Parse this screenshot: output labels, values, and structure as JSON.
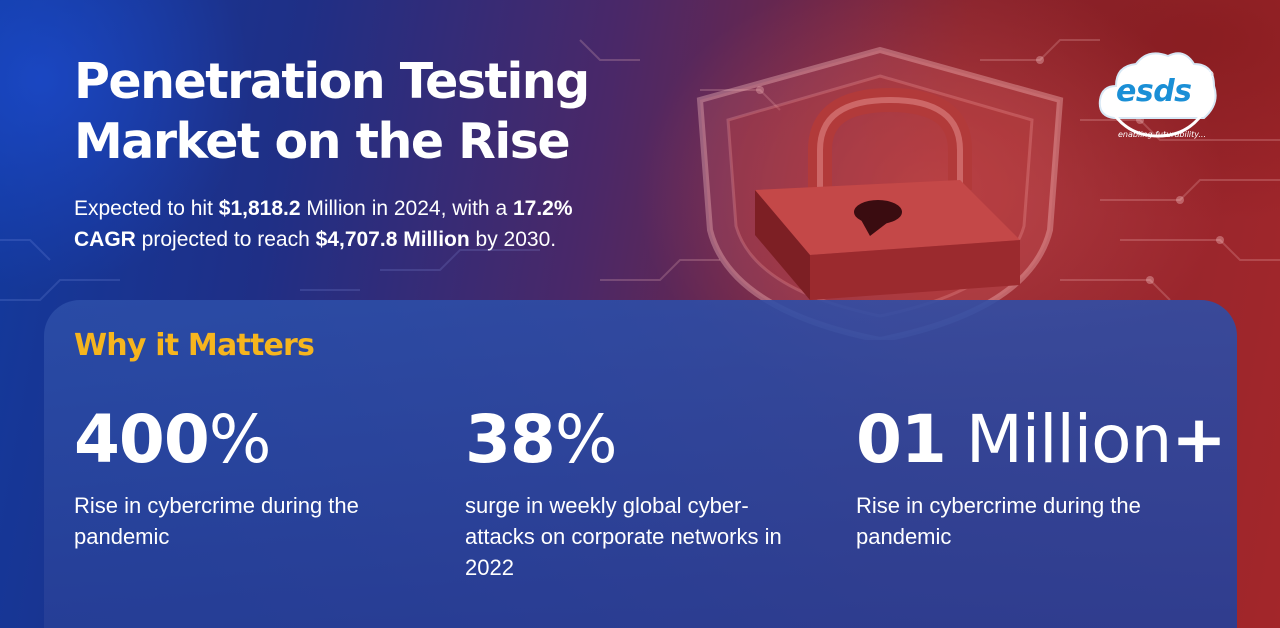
{
  "headline": {
    "line1": "Penetration Testing",
    "line2": "Market on the Rise"
  },
  "subtitle": {
    "t1": "Expected to hit ",
    "b1": "$1,818.2",
    "t2": " Million in 2024, with a ",
    "b2": "17.2%",
    "b3": "CAGR",
    "t3": " projected to reach ",
    "b4": "$4,707.8 Million",
    "t4": " by 2030."
  },
  "logo": {
    "name": "esds",
    "registered": "®",
    "tagline": "enabling futurability..."
  },
  "section": {
    "title": "Why it Matters"
  },
  "stats": [
    {
      "number": "400",
      "unit": "%",
      "plus": "",
      "description": "Rise in cybercrime during the pandemic"
    },
    {
      "number": "38",
      "unit": "%",
      "plus": "",
      "description": "surge in weekly global cyber-attacks on corporate networks in 2022"
    },
    {
      "number": "01",
      "unit": " Million",
      "plus": "+",
      "description": "Rise in cybercrime during the pandemic"
    }
  ],
  "colors": {
    "accent": "#f6b51e",
    "panel": "#2c4ea8",
    "logo_blue": "#1a8fd6"
  },
  "icons": {
    "background_art": "padlock-shield-icon",
    "logo_shape": "cloud-icon"
  }
}
